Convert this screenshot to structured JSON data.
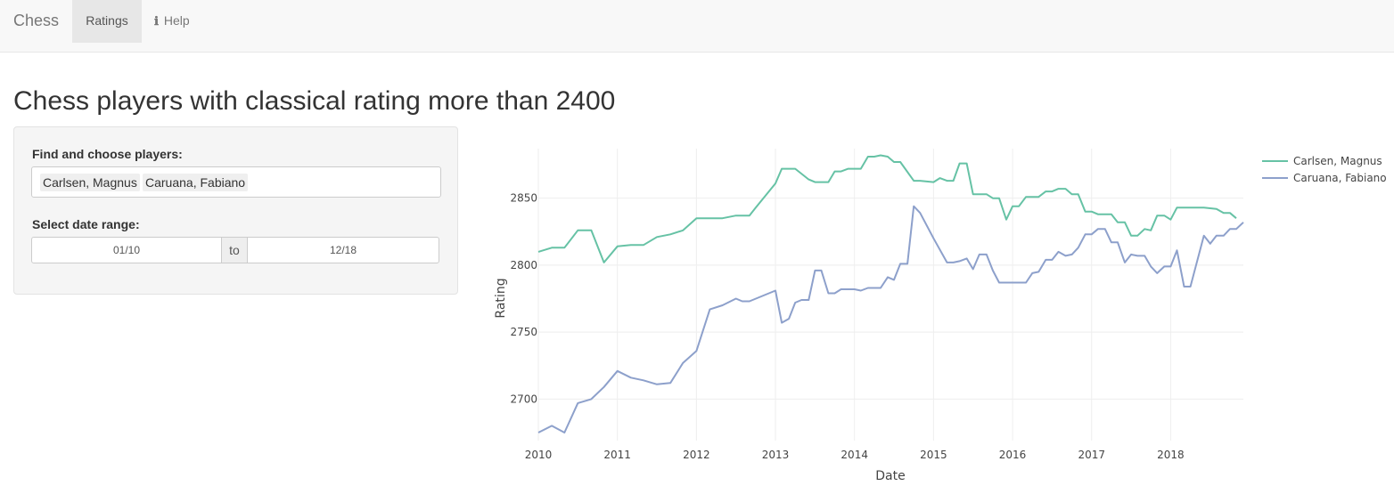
{
  "navbar": {
    "brand": "Chess",
    "tabs": [
      {
        "label": "Ratings",
        "active": true
      },
      {
        "label": "Help",
        "icon": "info-icon"
      }
    ]
  },
  "page": {
    "title": "Chess players with classical rating more than 2400"
  },
  "sidebar": {
    "players_label": "Find and choose players:",
    "selected_players": [
      "Carlsen, Magnus",
      "Caruana, Fabiano"
    ],
    "date_label": "Select date range:",
    "date_start": "01/10",
    "date_separator": "to",
    "date_end": "12/18"
  },
  "colors": {
    "carlsen": "#66c2a5",
    "caruana": "#8da0cb",
    "grid": "#eeeeee"
  },
  "chart_data": {
    "type": "line",
    "xlabel": "Date",
    "ylabel": "Rating",
    "xlim": [
      2010,
      2018.92
    ],
    "ylim": [
      2669,
      2887
    ],
    "x_ticks": [
      2010,
      2011,
      2012,
      2013,
      2014,
      2015,
      2016,
      2017,
      2018
    ],
    "y_ticks": [
      2700,
      2750,
      2800,
      2850
    ],
    "grid": true,
    "legend_position": "top-right",
    "series": [
      {
        "name": "Carlsen, Magnus",
        "points": [
          [
            2010.0,
            2810
          ],
          [
            2010.17,
            2813
          ],
          [
            2010.33,
            2813
          ],
          [
            2010.5,
            2826
          ],
          [
            2010.67,
            2826
          ],
          [
            2010.83,
            2802
          ],
          [
            2011.0,
            2814
          ],
          [
            2011.17,
            2815
          ],
          [
            2011.33,
            2815
          ],
          [
            2011.5,
            2821
          ],
          [
            2011.67,
            2823
          ],
          [
            2011.83,
            2826
          ],
          [
            2012.0,
            2835
          ],
          [
            2012.33,
            2835
          ],
          [
            2012.5,
            2837
          ],
          [
            2012.67,
            2837
          ],
          [
            2012.75,
            2843
          ],
          [
            2013.0,
            2861
          ],
          [
            2013.08,
            2872
          ],
          [
            2013.25,
            2872
          ],
          [
            2013.42,
            2864
          ],
          [
            2013.5,
            2862
          ],
          [
            2013.67,
            2862
          ],
          [
            2013.75,
            2870
          ],
          [
            2013.83,
            2870
          ],
          [
            2013.92,
            2872
          ],
          [
            2014.08,
            2872
          ],
          [
            2014.17,
            2881
          ],
          [
            2014.25,
            2881
          ],
          [
            2014.33,
            2882
          ],
          [
            2014.42,
            2881
          ],
          [
            2014.5,
            2877
          ],
          [
            2014.58,
            2877
          ],
          [
            2014.75,
            2863
          ],
          [
            2014.83,
            2863
          ],
          [
            2015.0,
            2862
          ],
          [
            2015.08,
            2865
          ],
          [
            2015.17,
            2863
          ],
          [
            2015.25,
            2863
          ],
          [
            2015.33,
            2876
          ],
          [
            2015.42,
            2876
          ],
          [
            2015.5,
            2853
          ],
          [
            2015.67,
            2853
          ],
          [
            2015.75,
            2850
          ],
          [
            2015.83,
            2850
          ],
          [
            2015.92,
            2834
          ],
          [
            2016.0,
            2844
          ],
          [
            2016.08,
            2844
          ],
          [
            2016.17,
            2851
          ],
          [
            2016.33,
            2851
          ],
          [
            2016.42,
            2855
          ],
          [
            2016.5,
            2855
          ],
          [
            2016.58,
            2857
          ],
          [
            2016.67,
            2857
          ],
          [
            2016.75,
            2853
          ],
          [
            2016.83,
            2853
          ],
          [
            2016.92,
            2840
          ],
          [
            2017.0,
            2840
          ],
          [
            2017.08,
            2838
          ],
          [
            2017.25,
            2838
          ],
          [
            2017.33,
            2832
          ],
          [
            2017.42,
            2832
          ],
          [
            2017.5,
            2822
          ],
          [
            2017.58,
            2822
          ],
          [
            2017.67,
            2827
          ],
          [
            2017.75,
            2826
          ],
          [
            2017.83,
            2837
          ],
          [
            2017.92,
            2837
          ],
          [
            2018.0,
            2834
          ],
          [
            2018.08,
            2843
          ],
          [
            2018.25,
            2843
          ],
          [
            2018.42,
            2843
          ],
          [
            2018.58,
            2842
          ],
          [
            2018.67,
            2839
          ],
          [
            2018.75,
            2839
          ],
          [
            2018.83,
            2835
          ]
        ]
      },
      {
        "name": "Caruana, Fabiano",
        "points": [
          [
            2010.0,
            2675
          ],
          [
            2010.17,
            2680
          ],
          [
            2010.33,
            2675
          ],
          [
            2010.5,
            2697
          ],
          [
            2010.67,
            2700
          ],
          [
            2010.83,
            2709
          ],
          [
            2011.0,
            2721
          ],
          [
            2011.17,
            2716
          ],
          [
            2011.33,
            2714
          ],
          [
            2011.5,
            2711
          ],
          [
            2011.67,
            2712
          ],
          [
            2011.83,
            2727
          ],
          [
            2012.0,
            2736
          ],
          [
            2012.17,
            2767
          ],
          [
            2012.33,
            2770
          ],
          [
            2012.5,
            2775
          ],
          [
            2012.58,
            2773
          ],
          [
            2012.67,
            2773
          ],
          [
            2013.0,
            2781
          ],
          [
            2013.08,
            2757
          ],
          [
            2013.17,
            2760
          ],
          [
            2013.25,
            2772
          ],
          [
            2013.33,
            2774
          ],
          [
            2013.42,
            2774
          ],
          [
            2013.5,
            2796
          ],
          [
            2013.58,
            2796
          ],
          [
            2013.67,
            2779
          ],
          [
            2013.75,
            2779
          ],
          [
            2013.83,
            2782
          ],
          [
            2014.0,
            2782
          ],
          [
            2014.08,
            2781
          ],
          [
            2014.17,
            2783
          ],
          [
            2014.33,
            2783
          ],
          [
            2014.42,
            2791
          ],
          [
            2014.5,
            2789
          ],
          [
            2014.58,
            2801
          ],
          [
            2014.67,
            2801
          ],
          [
            2014.75,
            2844
          ],
          [
            2014.83,
            2839
          ],
          [
            2015.0,
            2820
          ],
          [
            2015.17,
            2802
          ],
          [
            2015.25,
            2802
          ],
          [
            2015.33,
            2803
          ],
          [
            2015.42,
            2805
          ],
          [
            2015.5,
            2797
          ],
          [
            2015.58,
            2808
          ],
          [
            2015.67,
            2808
          ],
          [
            2015.75,
            2796
          ],
          [
            2015.83,
            2787
          ],
          [
            2016.0,
            2787
          ],
          [
            2016.17,
            2787
          ],
          [
            2016.25,
            2794
          ],
          [
            2016.33,
            2795
          ],
          [
            2016.42,
            2804
          ],
          [
            2016.5,
            2804
          ],
          [
            2016.58,
            2810
          ],
          [
            2016.67,
            2807
          ],
          [
            2016.75,
            2808
          ],
          [
            2016.83,
            2813
          ],
          [
            2016.92,
            2823
          ],
          [
            2017.0,
            2823
          ],
          [
            2017.08,
            2827
          ],
          [
            2017.17,
            2827
          ],
          [
            2017.25,
            2817
          ],
          [
            2017.33,
            2817
          ],
          [
            2017.42,
            2802
          ],
          [
            2017.5,
            2808
          ],
          [
            2017.58,
            2807
          ],
          [
            2017.67,
            2807
          ],
          [
            2017.75,
            2799
          ],
          [
            2017.83,
            2794
          ],
          [
            2017.92,
            2799
          ],
          [
            2018.0,
            2799
          ],
          [
            2018.08,
            2811
          ],
          [
            2018.17,
            2784
          ],
          [
            2018.25,
            2784
          ],
          [
            2018.42,
            2822
          ],
          [
            2018.5,
            2816
          ],
          [
            2018.58,
            2822
          ],
          [
            2018.67,
            2822
          ],
          [
            2018.75,
            2827
          ],
          [
            2018.83,
            2827
          ],
          [
            2018.92,
            2832
          ]
        ]
      }
    ]
  }
}
